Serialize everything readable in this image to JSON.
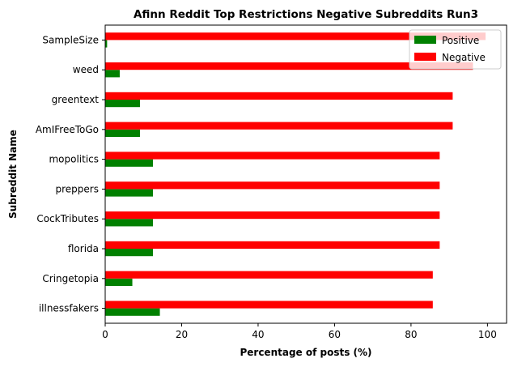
{
  "chart_data": {
    "type": "bar",
    "orientation": "horizontal",
    "title": "Afinn Reddit Top Restrictions Negative Subreddits Run3",
    "xlabel": "Percentage of posts (%)",
    "ylabel": "Subreddit Name",
    "xlim": [
      0,
      105
    ],
    "xticks": [
      0,
      20,
      40,
      60,
      80,
      100
    ],
    "categories": [
      "illnessfakers",
      "Cringetopia",
      "florida",
      "CockTributes",
      "preppers",
      "mopolitics",
      "AmIFreeToGo",
      "greentext",
      "weed",
      "SampleSize"
    ],
    "series": [
      {
        "name": "Positive",
        "color": "#008000",
        "values": [
          14.3,
          7.1,
          12.5,
          12.5,
          12.5,
          12.5,
          9.1,
          9.1,
          3.8,
          0.5
        ]
      },
      {
        "name": "Negative",
        "color": "#ff0000",
        "values": [
          85.7,
          85.7,
          87.5,
          87.5,
          87.5,
          87.5,
          90.9,
          90.9,
          96.2,
          99.5
        ]
      }
    ],
    "grid": false,
    "legend_position": "top-right"
  }
}
